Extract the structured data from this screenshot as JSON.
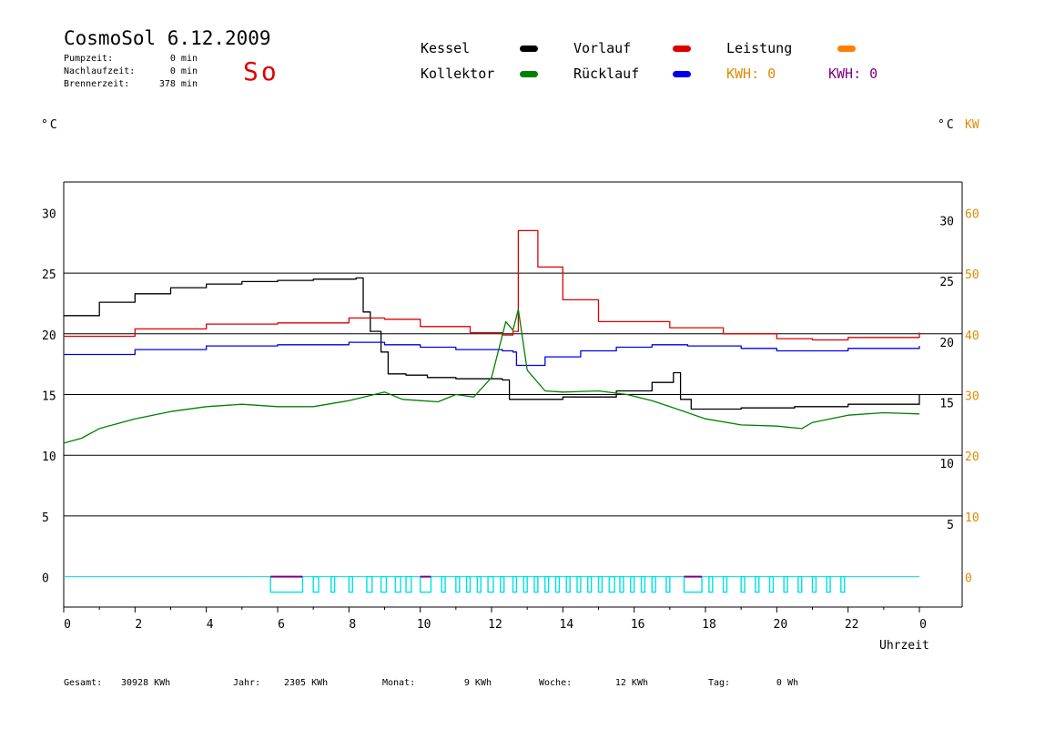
{
  "header": {
    "title": "CosmoSol 6.12.2009",
    "status_symbol": "So",
    "info": [
      {
        "label": "Pumpzeit:",
        "value": "0 min"
      },
      {
        "label": "Nachlaufzeit:",
        "value": "0 min"
      },
      {
        "label": "Brennerzeit:",
        "value": "378 min"
      }
    ]
  },
  "legend": [
    {
      "label": "Kessel",
      "color": "#000000"
    },
    {
      "label": "Kollektor",
      "color": "#008000"
    },
    {
      "label": "Vorlauf",
      "color": "#dd0000"
    },
    {
      "label": "Rücklauf",
      "color": "#0000ee"
    },
    {
      "label": "Leistung",
      "color": "#ff8000"
    },
    {
      "label": "KWH: 0",
      "color": "#e08a00"
    },
    {
      "label": "KWH: 0",
      "color": "#800080"
    }
  ],
  "axes": {
    "left_unit": "°C",
    "right_unit": "°C",
    "right_unit2": "KW",
    "x_label": "Uhrzeit"
  },
  "footer": [
    {
      "label": "Gesamt:",
      "value": "30928 KWh"
    },
    {
      "label": "Jahr:",
      "value": "2305 KWh"
    },
    {
      "label": "Monat:",
      "value": "9 KWh"
    },
    {
      "label": "Woche:",
      "value": "12 KWh"
    },
    {
      "label": "Tag:",
      "value": "0 Wh"
    }
  ],
  "chart_data": {
    "type": "line",
    "xlabel": "Uhrzeit",
    "xlim": [
      0,
      24
    ],
    "x_tick_labels": [
      "0",
      "2",
      "4",
      "6",
      "8",
      "10",
      "12",
      "14",
      "16",
      "18",
      "20",
      "22",
      "0"
    ],
    "ylim_left": [
      -2.5,
      32.5
    ],
    "y_ticks_left": [
      0,
      5,
      10,
      15,
      20,
      25,
      30
    ],
    "y_ticks_right_temp": [
      5,
      10,
      15,
      20,
      25,
      30
    ],
    "y_ticks_right_kw": [
      0,
      10,
      20,
      30,
      40,
      50,
      60
    ],
    "gridlines_y": [
      0,
      5,
      10,
      15,
      20,
      25
    ],
    "series": [
      {
        "name": "Kessel",
        "color": "#000000",
        "x": [
          0,
          1,
          2,
          3,
          4,
          5,
          6,
          7,
          8.2,
          8.4,
          8.6,
          8.9,
          9.1,
          9.6,
          10.2,
          11,
          12.3,
          12.5,
          12.6,
          14,
          15.5,
          16.5,
          17.1,
          17.3,
          17.6,
          19,
          20.5,
          22,
          24
        ],
        "y": [
          21.5,
          22.6,
          23.3,
          23.8,
          24.1,
          24.3,
          24.4,
          24.5,
          24.6,
          21.8,
          20.2,
          18.5,
          16.7,
          16.6,
          16.4,
          16.3,
          16.2,
          14.6,
          14.6,
          14.8,
          15.3,
          16.0,
          16.8,
          14.6,
          13.8,
          13.9,
          14.0,
          14.2,
          15.0
        ]
      },
      {
        "name": "Vorlauf",
        "color": "#dd0000",
        "x": [
          0,
          2,
          4,
          6,
          8,
          9,
          10,
          11.4,
          12.3,
          12.6,
          12.75,
          13.3,
          14,
          15,
          17,
          18.5,
          20,
          21,
          22,
          24
        ],
        "y": [
          19.8,
          20.4,
          20.8,
          20.9,
          21.3,
          21.2,
          20.6,
          20.1,
          19.9,
          20.2,
          28.5,
          25.5,
          22.8,
          21.0,
          20.5,
          20.0,
          19.6,
          19.5,
          19.7,
          20.1
        ]
      },
      {
        "name": "Rücklauf",
        "color": "#0000ee",
        "x": [
          0,
          2,
          4,
          6,
          8,
          9,
          10,
          11,
          12.3,
          12.6,
          12.7,
          13.5,
          14.5,
          15.5,
          16.5,
          17.5,
          19,
          20,
          21,
          22,
          24
        ],
        "y": [
          18.3,
          18.7,
          19.0,
          19.1,
          19.3,
          19.1,
          18.9,
          18.7,
          18.6,
          18.5,
          17.4,
          18.1,
          18.6,
          18.9,
          19.1,
          19.0,
          18.8,
          18.6,
          18.6,
          18.8,
          19.0
        ]
      },
      {
        "name": "Kollektor",
        "color": "#008000",
        "x": [
          0,
          0.5,
          1,
          2,
          3,
          4,
          5,
          6,
          7,
          8,
          9,
          9.5,
          10,
          10.5,
          11,
          11.5,
          12,
          12.4,
          12.6,
          12.75,
          13,
          13.5,
          14,
          15,
          15.8,
          16.5,
          17,
          18,
          19,
          20,
          20.7,
          21,
          22,
          23,
          24
        ],
        "y": [
          11.0,
          11.4,
          12.2,
          13.0,
          13.6,
          14.0,
          14.2,
          14.0,
          14.0,
          14.5,
          15.2,
          14.6,
          14.5,
          14.4,
          15.0,
          14.8,
          16.4,
          21.0,
          20.3,
          22.0,
          17.0,
          15.3,
          15.2,
          15.3,
          15.0,
          14.5,
          14.0,
          13.0,
          12.5,
          12.4,
          12.2,
          12.7,
          13.3,
          13.5,
          13.4
        ]
      }
    ],
    "events": [
      {
        "name": "Brenner",
        "color": "#00e0e0",
        "blocks": [
          [
            5.8,
            6.7
          ],
          [
            7.0,
            7.15
          ],
          [
            7.5,
            7.6
          ],
          [
            8.0,
            8.1
          ],
          [
            8.5,
            8.65
          ],
          [
            8.9,
            9.05
          ],
          [
            9.3,
            9.45
          ],
          [
            9.6,
            9.75
          ],
          [
            10.0,
            10.3
          ],
          [
            10.6,
            10.7
          ],
          [
            11.0,
            11.1
          ],
          [
            11.3,
            11.4
          ],
          [
            11.6,
            11.7
          ],
          [
            11.9,
            12.05
          ],
          [
            12.25,
            12.35
          ],
          [
            12.6,
            12.7
          ],
          [
            12.9,
            13.0
          ],
          [
            13.2,
            13.3
          ],
          [
            13.5,
            13.6
          ],
          [
            13.8,
            13.9
          ],
          [
            14.1,
            14.2
          ],
          [
            14.4,
            14.5
          ],
          [
            14.7,
            14.8
          ],
          [
            15.0,
            15.1
          ],
          [
            15.3,
            15.45
          ],
          [
            15.6,
            15.7
          ],
          [
            15.9,
            16.0
          ],
          [
            16.2,
            16.3
          ],
          [
            16.5,
            16.6
          ],
          [
            16.9,
            17.0
          ],
          [
            17.4,
            17.9
          ],
          [
            18.1,
            18.2
          ],
          [
            18.5,
            18.6
          ],
          [
            19.0,
            19.1
          ],
          [
            19.4,
            19.5
          ],
          [
            19.8,
            19.9
          ],
          [
            20.2,
            20.3
          ],
          [
            20.6,
            20.7
          ],
          [
            21.0,
            21.1
          ],
          [
            21.4,
            21.5
          ],
          [
            21.8,
            21.9
          ]
        ]
      },
      {
        "name": "Pumpe",
        "color": "#800080",
        "blocks": [
          [
            5.8,
            6.7
          ],
          [
            10.0,
            10.3
          ],
          [
            17.4,
            17.9
          ]
        ]
      }
    ]
  }
}
